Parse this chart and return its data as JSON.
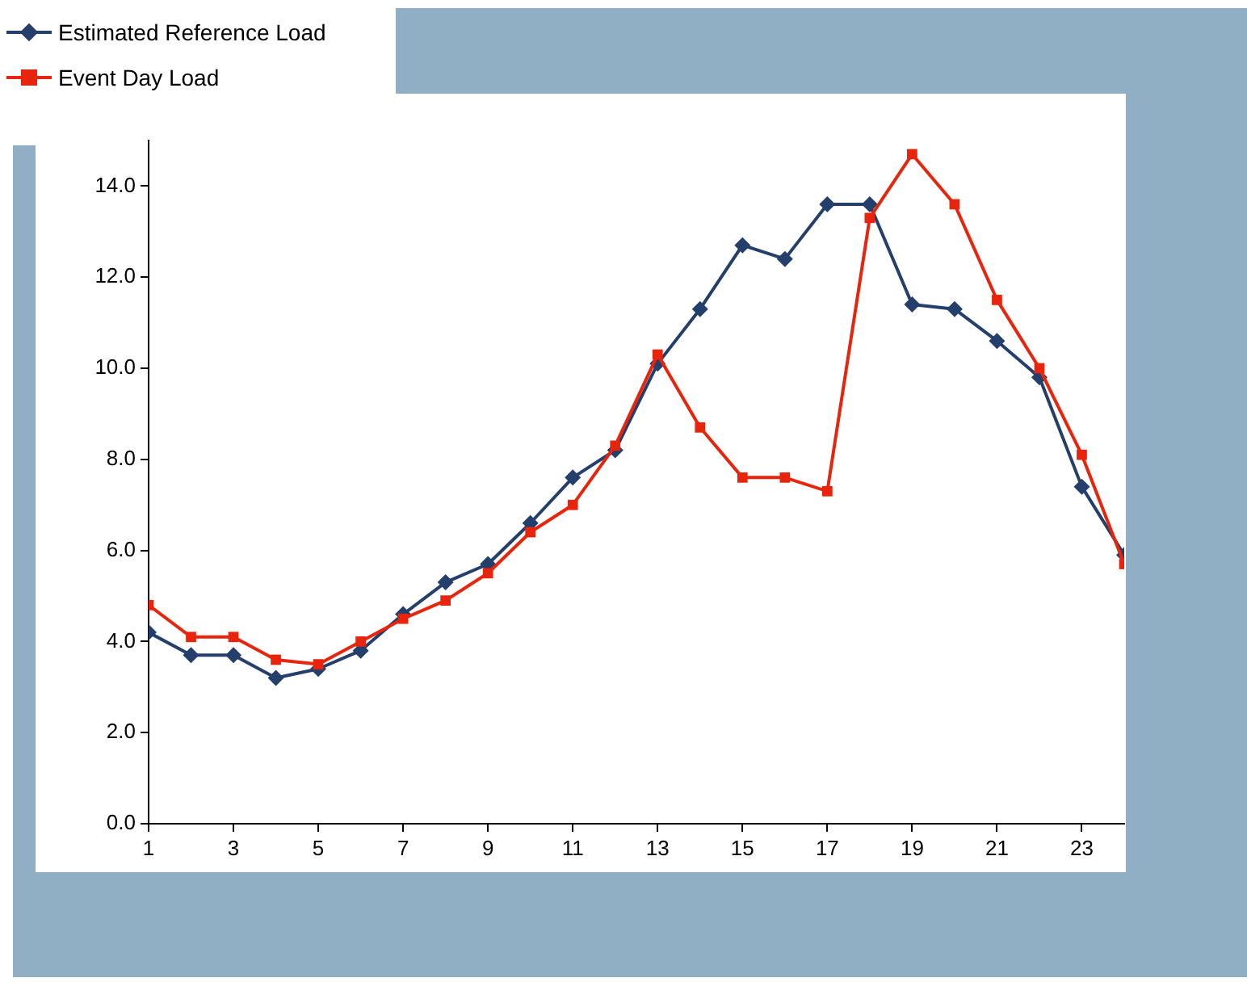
{
  "chart_data": {
    "type": "line",
    "x": [
      1,
      2,
      3,
      4,
      5,
      6,
      7,
      8,
      9,
      10,
      11,
      12,
      13,
      14,
      15,
      16,
      17,
      18,
      19,
      20,
      21,
      22,
      23,
      24
    ],
    "series": [
      {
        "name": "Estimated Reference Load",
        "color": "#243f6b",
        "marker": "diamond",
        "values": [
          4.2,
          3.7,
          3.7,
          3.2,
          3.4,
          3.8,
          4.6,
          5.3,
          5.7,
          6.6,
          7.6,
          8.2,
          10.1,
          11.3,
          12.7,
          12.4,
          13.6,
          13.6,
          11.4,
          11.3,
          10.6,
          9.8,
          7.4,
          5.9
        ]
      },
      {
        "name": "Event Day Load",
        "color": "#e8250c",
        "marker": "square",
        "values": [
          4.8,
          4.1,
          4.1,
          3.6,
          3.5,
          4.0,
          4.5,
          4.9,
          5.5,
          6.4,
          7.0,
          8.3,
          10.3,
          8.7,
          7.6,
          7.6,
          7.3,
          13.3,
          14.7,
          13.6,
          11.5,
          10.0,
          8.1,
          5.7
        ]
      }
    ],
    "xlim": [
      1,
      24
    ],
    "xticks": [
      1,
      3,
      5,
      7,
      9,
      11,
      13,
      15,
      17,
      19,
      21,
      23
    ],
    "ylim": [
      0,
      15
    ],
    "yticks": [
      {
        "value": 0,
        "label": "0.0"
      },
      {
        "value": 2,
        "label": "2.0"
      },
      {
        "value": 4,
        "label": "4.0"
      },
      {
        "value": 6,
        "label": "6.0"
      },
      {
        "value": 8,
        "label": "8.0"
      },
      {
        "value": 10,
        "label": "10.0"
      },
      {
        "value": 12,
        "label": "12.0"
      },
      {
        "value": 14,
        "label": "14.0"
      }
    ],
    "grid": false,
    "legend": "top left",
    "line_style": "solid"
  }
}
